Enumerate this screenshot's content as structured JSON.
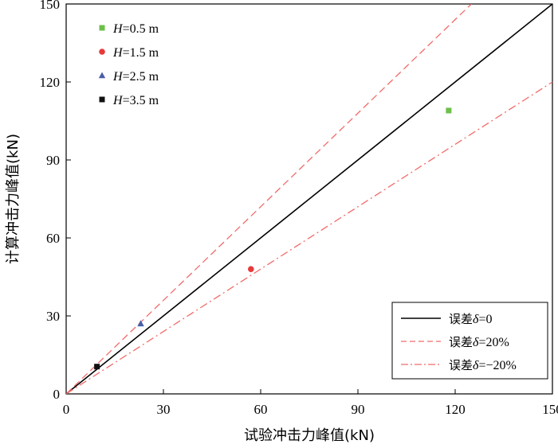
{
  "chart_data": {
    "type": "scatter",
    "xlabel": "试验冲击力峰值(kN)",
    "ylabel": "计算冲击力峰值(kN)",
    "xlim": [
      0,
      150
    ],
    "ylim": [
      0,
      150
    ],
    "xticks": [
      "0",
      "30",
      "60",
      "90",
      "120",
      "150"
    ],
    "yticks": [
      "0",
      "30",
      "60",
      "90",
      "120",
      "150"
    ],
    "grid": false,
    "series": [
      {
        "name": "H=0.5 m",
        "name_var": "H",
        "name_rest": "=0.5 m",
        "marker": "square",
        "color": "#6cc04a",
        "points": [
          [
            118,
            109
          ]
        ]
      },
      {
        "name": "H=1.5 m",
        "name_var": "H",
        "name_rest": "=1.5 m",
        "marker": "circle",
        "color": "#e8393a",
        "points": [
          [
            57,
            48
          ]
        ]
      },
      {
        "name": "H=2.5 m",
        "name_var": "H",
        "name_rest": "=2.5 m",
        "marker": "triangle",
        "color": "#4a5fa8",
        "points": [
          [
            23,
            27
          ]
        ]
      },
      {
        "name": "H=3.5 m",
        "name_var": "H",
        "name_rest": "=3.5 m",
        "marker": "square",
        "color": "#111111",
        "points": [
          [
            9.5,
            10.5
          ]
        ]
      }
    ],
    "reference_lines": [
      {
        "name": "误差δ=0",
        "prefix": "误差",
        "var": "δ",
        "suffix": "=0",
        "slope": 1.0,
        "style": "solid",
        "color": "#000000"
      },
      {
        "name": "误差δ=20%",
        "prefix": "误差",
        "var": "δ",
        "suffix": "=20%",
        "slope": 1.2,
        "style": "dashed",
        "color": "#f26b6b"
      },
      {
        "name": "误差δ=−20%",
        "prefix": "误差",
        "var": "δ",
        "suffix": "=−20%",
        "slope": 0.8,
        "style": "dashdot",
        "color": "#f26b6b"
      }
    ],
    "legend_position": "top-left (markers), bottom-right (lines)"
  }
}
